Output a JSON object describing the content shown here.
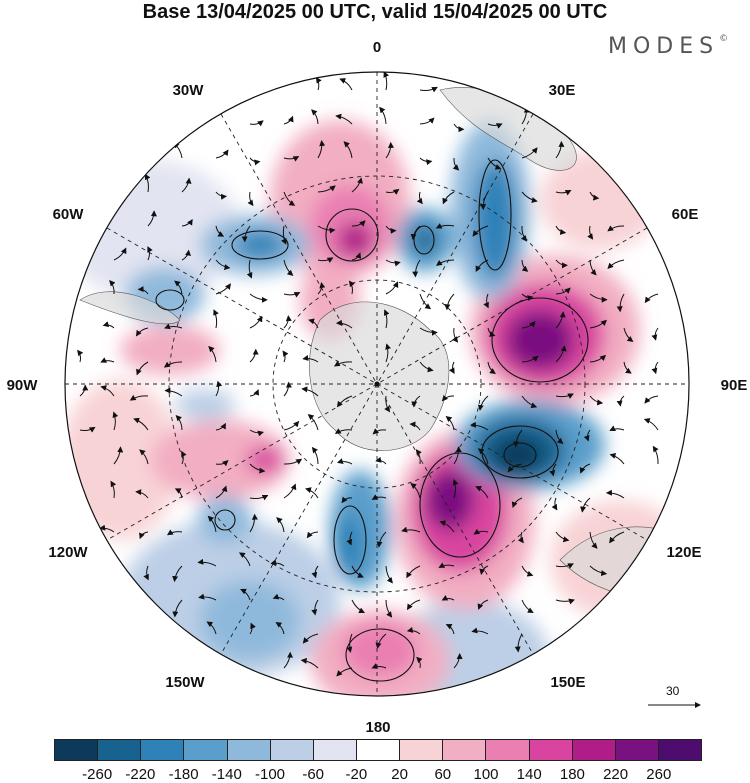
{
  "title": "Base 13/04/2025 00 UTC, valid 15/04/2025 00 UTC",
  "logo": {
    "text": "MODES",
    "mark": "©"
  },
  "longitude_labels": [
    {
      "id": "0",
      "text": "0"
    },
    {
      "id": "30E",
      "text": "30E"
    },
    {
      "id": "60E",
      "text": "60E"
    },
    {
      "id": "90E",
      "text": "90E"
    },
    {
      "id": "120E",
      "text": "120E"
    },
    {
      "id": "150E",
      "text": "150E"
    },
    {
      "id": "180",
      "text": "180"
    },
    {
      "id": "150W",
      "text": "150W"
    },
    {
      "id": "120W",
      "text": "120W"
    },
    {
      "id": "90W",
      "text": "90W"
    },
    {
      "id": "60W",
      "text": "60W"
    },
    {
      "id": "30W",
      "text": "30W"
    }
  ],
  "vector_scale": {
    "label": "30"
  },
  "colorbar": {
    "ticks": [
      "-260",
      "-220",
      "-180",
      "-140",
      "-100",
      "-60",
      "-20",
      "20",
      "60",
      "100",
      "140",
      "180",
      "220",
      "260"
    ],
    "colors": [
      "#0d3a5a",
      "#17628f",
      "#2e82b8",
      "#5a9ecb",
      "#8fb9db",
      "#bccfe6",
      "#e2e4f1",
      "#ffffff",
      "#f8d3d6",
      "#f2aec2",
      "#ea7fb2",
      "#d8449f",
      "#b01d88",
      "#7a1180",
      "#4e0c6f"
    ]
  },
  "colors": {
    "land": "#d9d9d9",
    "grid": "#222222"
  }
}
